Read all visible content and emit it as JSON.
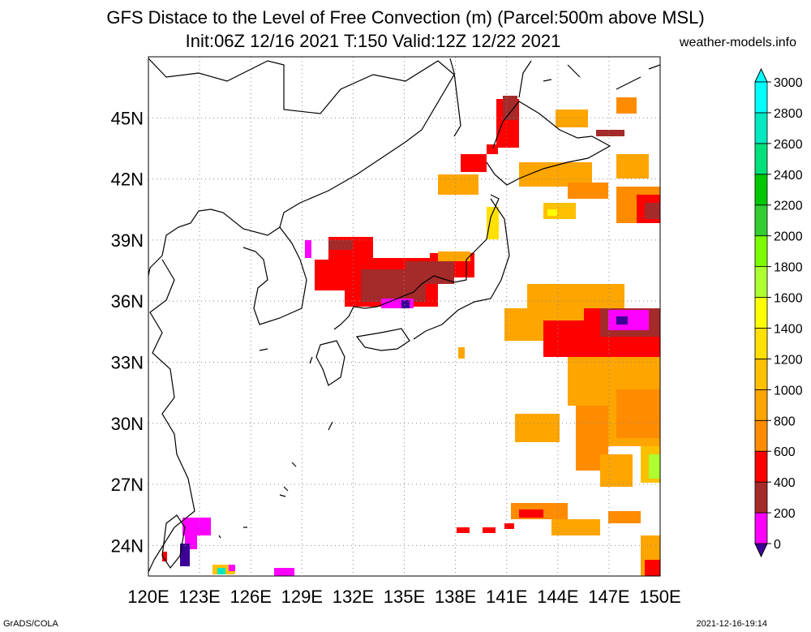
{
  "header": {
    "title": "GFS Distace to the Level of Free Convection (m) (Parcel:500m above MSL)",
    "subtitle": "Init:06Z 12/16 2021 T:150 Valid:12Z 12/22 2021",
    "site": "weather-models.info"
  },
  "footer": {
    "left": "GrADS/COLA",
    "right": "2021-12-16-19:14"
  },
  "map": {
    "lon_range": [
      120,
      150
    ],
    "lat_range": [
      22.5,
      48
    ],
    "lon_ticks": [
      "120E",
      "123E",
      "126E",
      "129E",
      "132E",
      "135E",
      "138E",
      "141E",
      "144E",
      "147E",
      "150E"
    ],
    "lat_ticks": [
      "24N",
      "27N",
      "30N",
      "33N",
      "36N",
      "39N",
      "42N",
      "45N"
    ],
    "colorbar": {
      "levels": [
        "0",
        "200",
        "400",
        "600",
        "800",
        "1000",
        "1200",
        "1400",
        "1600",
        "1800",
        "2000",
        "2200",
        "2400",
        "2600",
        "2800",
        "3000"
      ],
      "colors": [
        "#3c0096",
        "#ff00ff",
        "#a52a2a",
        "#ff0000",
        "#ff8c00",
        "#ffa500",
        "#ffc000",
        "#ffe000",
        "#ffff00",
        "#adff2f",
        "#7cfc00",
        "#32cd32",
        "#00c800",
        "#00e07a",
        "#00e8c0",
        "#00ffff"
      ]
    }
  }
}
